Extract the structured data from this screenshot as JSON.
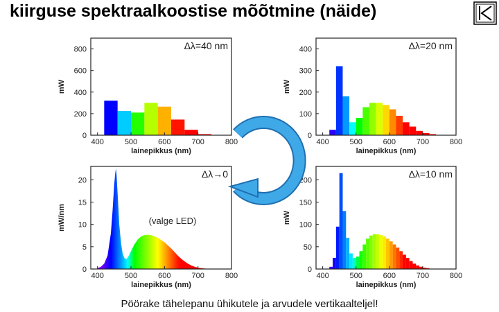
{
  "slide": {
    "title": "kiirguse spektraalkoostise mõõtmine (näide)",
    "caption": "Pöörake tähelepanu ühikutele ja arvudele vertikaalteljel!",
    "nav_icon": "return-arrow-icon",
    "rotate_icon": "circular-arrow-icon",
    "rotate_color": "#3fa9e8"
  },
  "chart_data": [
    {
      "type": "bar",
      "id": "c40",
      "corner_label": "Δλ=40 nm",
      "xlabel": "lainepikkus (nm)",
      "ylabel": "mW",
      "xlim": [
        380,
        800
      ],
      "ylim": [
        0,
        900
      ],
      "xticks": [
        400,
        500,
        600,
        700,
        800
      ],
      "yticks": [
        0,
        200,
        400,
        600,
        800
      ],
      "bin_width": 40,
      "x": [
        440,
        480,
        520,
        560,
        600,
        640,
        680,
        720
      ],
      "values": [
        320,
        225,
        210,
        300,
        265,
        145,
        50,
        10
      ]
    },
    {
      "type": "bar",
      "id": "c20",
      "corner_label": "Δλ=20 nm",
      "xlabel": "lainepikkus (nm)",
      "ylabel": "mW",
      "xlim": [
        380,
        800
      ],
      "ylim": [
        0,
        450
      ],
      "xticks": [
        400,
        500,
        600,
        700,
        800
      ],
      "yticks": [
        0,
        100,
        200,
        300,
        400
      ],
      "bin_width": 20,
      "x": [
        430,
        450,
        470,
        490,
        510,
        530,
        550,
        570,
        590,
        610,
        630,
        650,
        670,
        690,
        710,
        730
      ],
      "values": [
        25,
        320,
        180,
        60,
        80,
        130,
        150,
        150,
        140,
        120,
        90,
        60,
        40,
        20,
        10,
        5
      ]
    },
    {
      "type": "area",
      "id": "c0",
      "corner_label": "Δλ→0",
      "annotation": "(valge LED)",
      "xlabel": "lainepikkus (nm)",
      "ylabel": "mW/nm",
      "xlim": [
        380,
        800
      ],
      "ylim": [
        0,
        23
      ],
      "xticks": [
        400,
        500,
        600,
        700,
        800
      ],
      "yticks": [
        0,
        5,
        10,
        15,
        20
      ],
      "x": [
        400,
        410,
        420,
        430,
        440,
        445,
        450,
        453,
        455,
        457,
        460,
        465,
        470,
        475,
        480,
        485,
        490,
        495,
        500,
        510,
        520,
        530,
        540,
        550,
        560,
        570,
        580,
        590,
        600,
        610,
        620,
        630,
        640,
        650,
        660,
        670,
        680,
        690,
        700,
        710,
        720,
        730,
        740,
        750
      ],
      "values": [
        0.2,
        0.5,
        1.2,
        3.0,
        8.0,
        13.0,
        19.0,
        21.5,
        22.5,
        21.0,
        17.0,
        10.0,
        6.0,
        3.5,
        2.5,
        2.2,
        2.5,
        3.2,
        4.0,
        5.5,
        6.6,
        7.3,
        7.6,
        7.7,
        7.6,
        7.3,
        7.0,
        6.5,
        6.0,
        5.3,
        4.6,
        3.8,
        3.0,
        2.3,
        1.7,
        1.2,
        0.8,
        0.5,
        0.3,
        0.2,
        0.1,
        0.05,
        0.02,
        0.0
      ]
    },
    {
      "type": "bar",
      "id": "c10",
      "corner_label": "Δλ=10 nm",
      "xlabel": "lainepikkus (nm)",
      "ylabel": "mW",
      "xlim": [
        380,
        800
      ],
      "ylim": [
        0,
        230
      ],
      "xticks": [
        400,
        500,
        600,
        700,
        800
      ],
      "yticks": [
        0,
        50,
        100,
        150,
        200
      ],
      "bin_width": 10,
      "x": [
        425,
        435,
        445,
        455,
        465,
        475,
        485,
        495,
        505,
        515,
        525,
        535,
        545,
        555,
        565,
        575,
        585,
        595,
        605,
        615,
        625,
        635,
        645,
        655,
        665,
        675,
        685,
        695,
        705,
        715
      ],
      "values": [
        5,
        25,
        95,
        215,
        130,
        70,
        35,
        25,
        28,
        40,
        55,
        68,
        75,
        78,
        78,
        76,
        73,
        68,
        62,
        55,
        48,
        40,
        32,
        25,
        18,
        12,
        8,
        5,
        3,
        2
      ]
    }
  ]
}
